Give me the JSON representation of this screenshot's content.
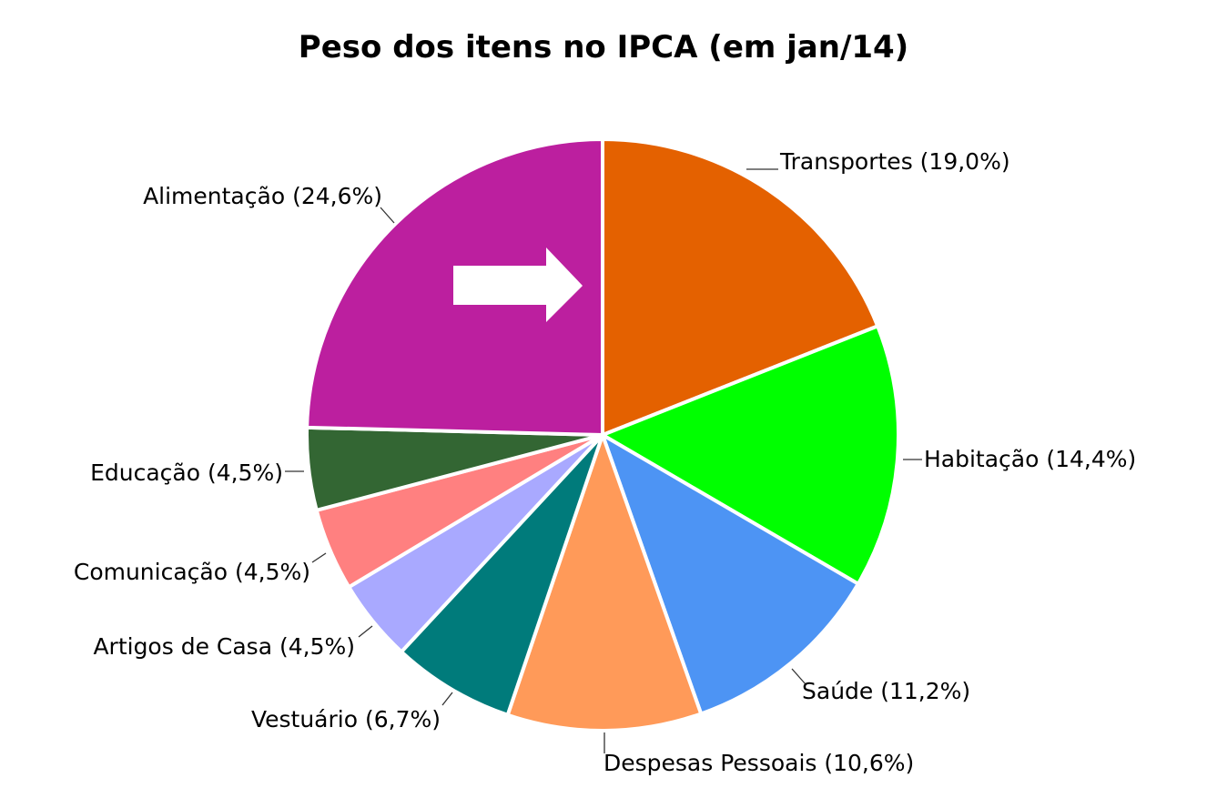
{
  "chart_data": {
    "type": "pie",
    "title": "Peso dos itens no IPCA (em jan/14)",
    "slices": [
      {
        "label": "Transportes (19,0%)",
        "value": 19.0,
        "color": "#E46100"
      },
      {
        "label": "Habitação (14,4%)",
        "value": 14.4,
        "color": "#00FF00"
      },
      {
        "label": "Saúde (11,2%)",
        "value": 11.2,
        "color": "#4D94F4"
      },
      {
        "label": "Despesas Pessoais (10,6%)",
        "value": 10.6,
        "color": "#FF9A59"
      },
      {
        "label": "Vestuário (6,7%)",
        "value": 6.7,
        "color": "#007B7B"
      },
      {
        "label": "Artigos de Casa (4,5%)",
        "value": 4.5,
        "color": "#A9A9FF"
      },
      {
        "label": "Comunicação (4,5%)",
        "value": 4.5,
        "color": "#FF8080"
      },
      {
        "label": "Educação (4,5%)",
        "value": 4.5,
        "color": "#336633"
      },
      {
        "label": "Alimentação (24,6%)",
        "value": 24.6,
        "color": "#BC1F9F"
      }
    ],
    "annotation": {
      "type": "arrow",
      "color": "#FFFFFF",
      "points_to": "Transportes (19,0%)"
    }
  }
}
